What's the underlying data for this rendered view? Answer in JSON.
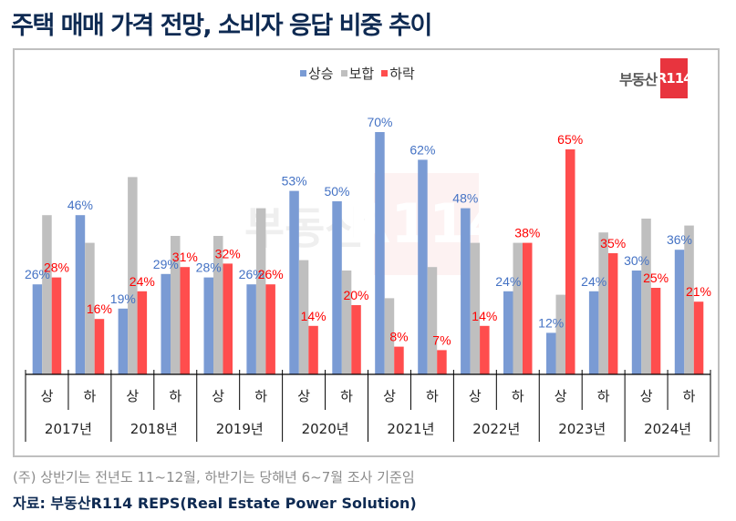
{
  "title": "주택 매매 가격 전망, 소비자 응답 비중 추이",
  "logo": {
    "text": "부동산",
    "badge": "R114"
  },
  "note": "(주) 상반기는 전년도 11~12월, 하반기는 당해년 6~7월 조사 기준임",
  "source": "자료: 부동산R114 REPS(Real Estate Power Solution)",
  "colors": {
    "up": "#7a9bd4",
    "flat": "#bfbfbf",
    "down": "#ff4d4d",
    "up_label": "#4472c4",
    "down_label": "#ff0000"
  },
  "chart_data": {
    "type": "bar",
    "title": "주택 매매 가격 전망, 소비자 응답 비중 추이",
    "xlabel": "",
    "ylabel": "",
    "ylim": [
      0,
      75
    ],
    "grid": false,
    "legend_position": "top-center",
    "categories": [
      "2017상",
      "2017하",
      "2018상",
      "2018하",
      "2019상",
      "2019하",
      "2020상",
      "2020하",
      "2021상",
      "2021하",
      "2022상",
      "2022하",
      "2023상",
      "2023하",
      "2024상",
      "2024하"
    ],
    "half_labels": [
      "상",
      "하",
      "상",
      "하",
      "상",
      "하",
      "상",
      "하",
      "상",
      "하",
      "상",
      "하",
      "상",
      "하",
      "상",
      "하"
    ],
    "years": [
      "2017년",
      "2018년",
      "2019년",
      "2020년",
      "2021년",
      "2022년",
      "2023년",
      "2024년"
    ],
    "series": [
      {
        "name": "상승",
        "key": "up",
        "values": [
          26,
          46,
          19,
          29,
          28,
          26,
          53,
          50,
          70,
          62,
          48,
          24,
          12,
          24,
          30,
          36
        ],
        "labeled": true
      },
      {
        "name": "보합",
        "key": "flat",
        "values": [
          46,
          38,
          57,
          40,
          40,
          48,
          33,
          30,
          22,
          31,
          38,
          38,
          23,
          41,
          45,
          43
        ],
        "labeled": false
      },
      {
        "name": "하락",
        "key": "down",
        "values": [
          28,
          16,
          24,
          31,
          32,
          26,
          14,
          20,
          8,
          7,
          14,
          38,
          65,
          35,
          25,
          21
        ],
        "labeled": true
      }
    ]
  }
}
